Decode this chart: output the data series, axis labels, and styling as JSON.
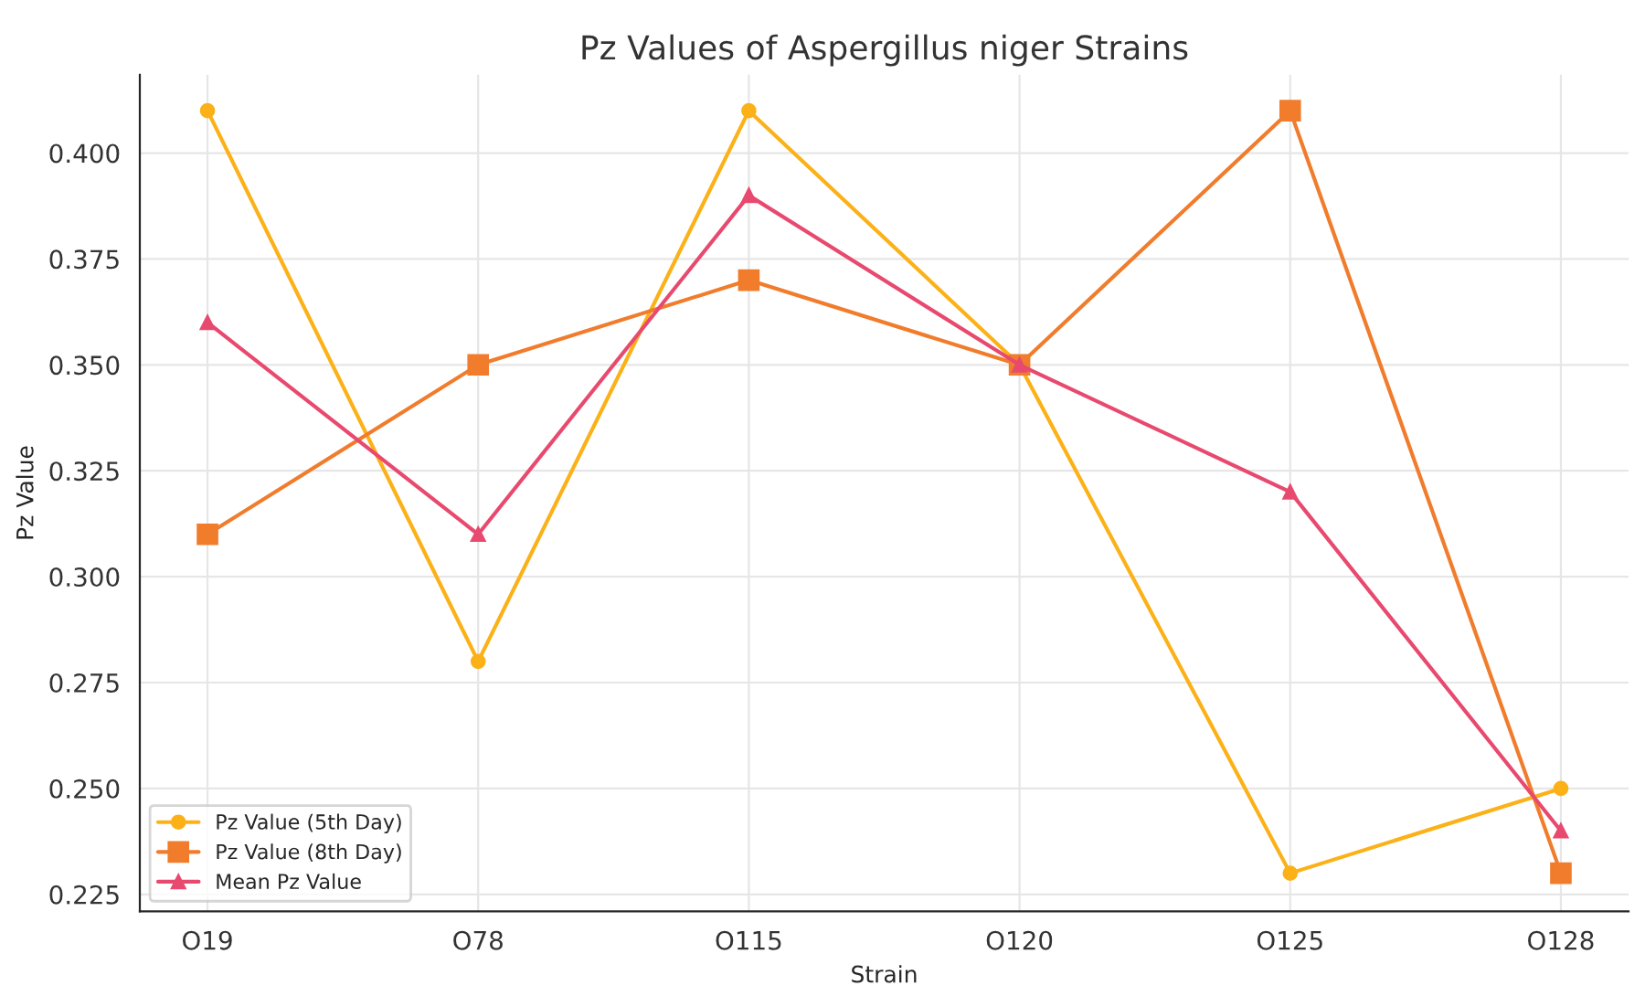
{
  "chart_data": {
    "type": "line",
    "title": "Pz Values of Aspergillus niger Strains",
    "xlabel": "Strain",
    "ylabel": "Pz Value",
    "categories": [
      "O19",
      "O78",
      "O115",
      "O120",
      "O125",
      "O128"
    ],
    "series": [
      {
        "name": "Pz Value (5th Day)",
        "color": "#fbb117",
        "marker": "circle",
        "values": [
          0.41,
          0.28,
          0.41,
          0.35,
          0.23,
          0.25
        ]
      },
      {
        "name": "Pz Value (8th Day)",
        "color": "#f07c2c",
        "marker": "square",
        "values": [
          0.31,
          0.35,
          0.37,
          0.35,
          0.41,
          0.23
        ]
      },
      {
        "name": "Mean Pz Value",
        "color": "#e84a6f",
        "marker": "triangle",
        "values": [
          0.36,
          0.31,
          0.39,
          0.35,
          0.32,
          0.24
        ]
      }
    ],
    "ylim": [
      0.221,
      0.4185
    ],
    "yticks": [
      {
        "value": 0.225,
        "label": "0.225"
      },
      {
        "value": 0.25,
        "label": "0.250"
      },
      {
        "value": 0.275,
        "label": "0.275"
      },
      {
        "value": 0.3,
        "label": "0.300"
      },
      {
        "value": 0.325,
        "label": "0.325"
      },
      {
        "value": 0.35,
        "label": "0.350"
      },
      {
        "value": 0.375,
        "label": "0.375"
      },
      {
        "value": 0.4,
        "label": "0.400"
      }
    ],
    "grid": true,
    "legend": "bottom left",
    "line_style": "solid"
  }
}
